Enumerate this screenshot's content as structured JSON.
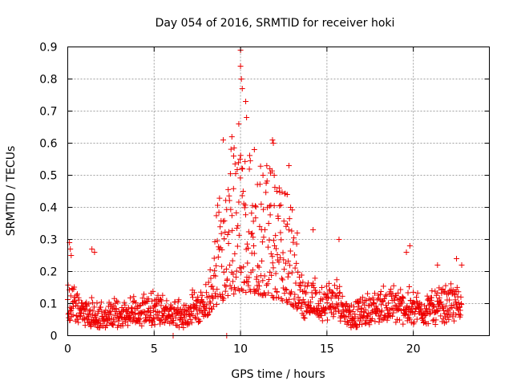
{
  "chart_data": {
    "type": "scatter",
    "title": "Day 054 of 2016, SRMTID for receiver hoki",
    "xlabel": "GPS time / hours",
    "ylabel": "SRMTID / TECUs",
    "xlim": [
      0,
      24.4
    ],
    "ylim": [
      0,
      0.9
    ],
    "xticks": [
      0,
      5,
      10,
      15,
      20
    ],
    "yticks": [
      0,
      0.1,
      0.2,
      0.3,
      0.4,
      0.5,
      0.6,
      0.7,
      0.8,
      0.9
    ],
    "grid": true,
    "marker": "plus",
    "color": "#ee0000",
    "series": [
      {
        "name": "SRMTID",
        "profile": {
          "x": [
            0,
            0.3,
            1,
            2,
            3,
            4,
            5,
            6,
            6.5,
            7.5,
            8.5,
            9.3,
            10,
            10.7,
            11.5,
            12.5,
            13.5,
            14.5,
            15.5,
            16.5,
            17.5,
            18.5,
            19.5,
            20.5,
            21.5,
            22.8
          ],
          "y": [
            0.15,
            0.13,
            0.1,
            0.08,
            0.09,
            0.1,
            0.11,
            0.09,
            0.08,
            0.12,
            0.18,
            0.28,
            0.3,
            0.3,
            0.27,
            0.24,
            0.17,
            0.13,
            0.15,
            0.08,
            0.11,
            0.13,
            0.12,
            0.11,
            0.12,
            0.14
          ]
        },
        "spikes": [
          {
            "x": 0.1,
            "y": 0.29
          },
          {
            "x": 0.15,
            "y": 0.27
          },
          {
            "x": 0.2,
            "y": 0.25
          },
          {
            "x": 1.4,
            "y": 0.27
          },
          {
            "x": 1.55,
            "y": 0.26
          },
          {
            "x": 9.0,
            "y": 0.61
          },
          {
            "x": 9.5,
            "y": 0.62
          },
          {
            "x": 9.6,
            "y": 0.56
          },
          {
            "x": 10.0,
            "y": 0.89
          },
          {
            "x": 10.0,
            "y": 0.84
          },
          {
            "x": 10.05,
            "y": 0.8
          },
          {
            "x": 10.1,
            "y": 0.77
          },
          {
            "x": 10.3,
            "y": 0.73
          },
          {
            "x": 10.35,
            "y": 0.68
          },
          {
            "x": 9.9,
            "y": 0.66
          },
          {
            "x": 10.8,
            "y": 0.58
          },
          {
            "x": 11.3,
            "y": 0.5
          },
          {
            "x": 11.7,
            "y": 0.52
          },
          {
            "x": 11.85,
            "y": 0.61
          },
          {
            "x": 11.9,
            "y": 0.6
          },
          {
            "x": 11.95,
            "y": 0.5
          },
          {
            "x": 12.1,
            "y": 0.45
          },
          {
            "x": 12.8,
            "y": 0.53
          },
          {
            "x": 12.7,
            "y": 0.44
          },
          {
            "x": 12.9,
            "y": 0.4
          },
          {
            "x": 14.2,
            "y": 0.33
          },
          {
            "x": 15.7,
            "y": 0.3
          },
          {
            "x": 19.8,
            "y": 0.28
          },
          {
            "x": 19.6,
            "y": 0.26
          },
          {
            "x": 21.4,
            "y": 0.22
          },
          {
            "x": 22.5,
            "y": 0.24
          },
          {
            "x": 22.8,
            "y": 0.22
          }
        ],
        "zeros": [
          {
            "x": 6.1,
            "y": 0.0
          },
          {
            "x": 9.2,
            "y": 0.0
          }
        ]
      }
    ]
  }
}
